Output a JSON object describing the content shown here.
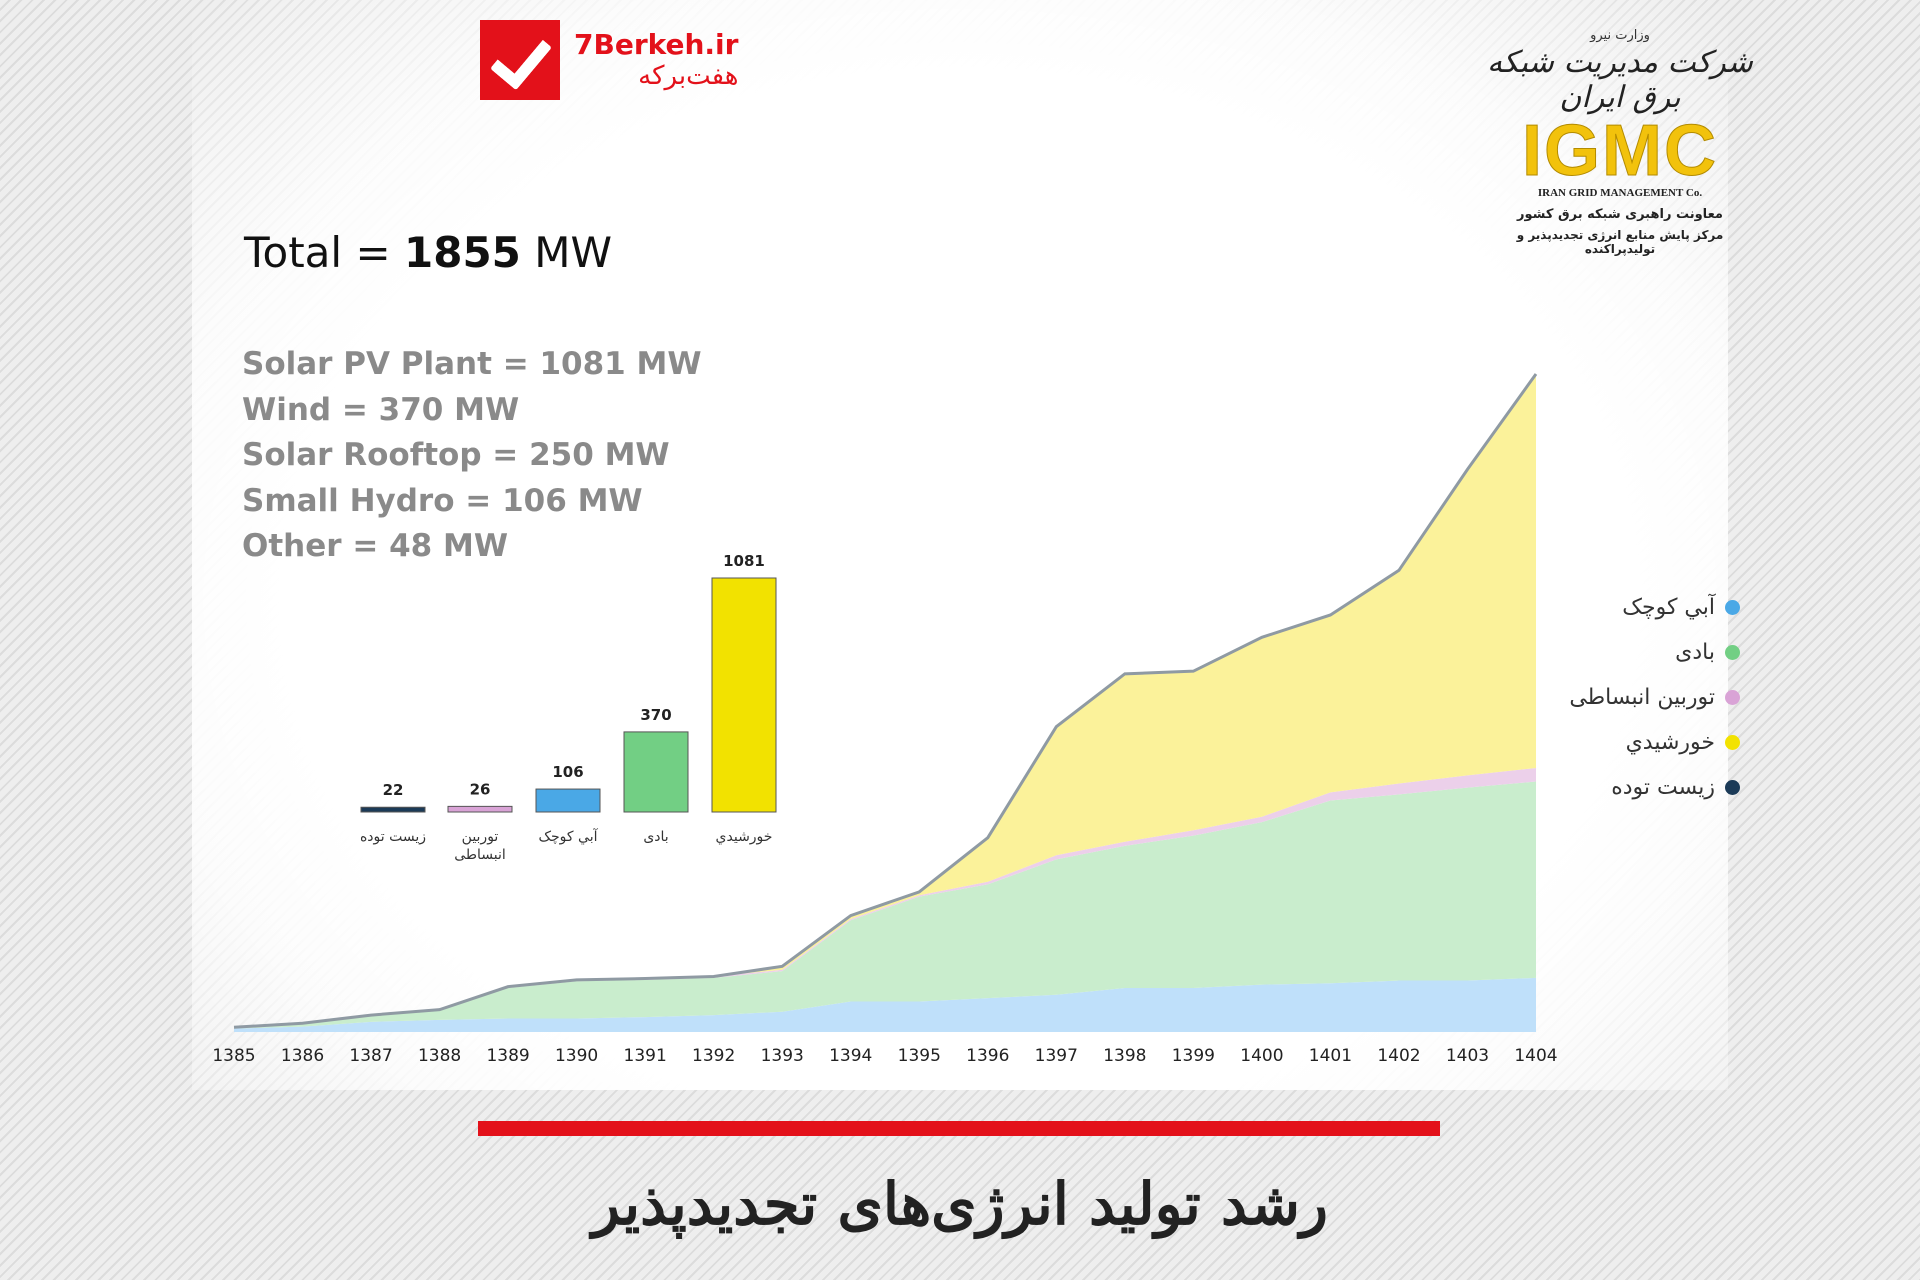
{
  "brand": {
    "name_en": "7Berkeh.ir",
    "name_fa": "هفت‌برکه"
  },
  "logo": {
    "ministry": "وزارت نیرو",
    "company_fa": "شرکت مدیریت شبکه برق ایران",
    "acronym": "IGMC",
    "company_en": "IRAN GRID MANAGEMENT Co.",
    "line1": "معاونت راهبری شبکه برق کشور",
    "line2": "مرکز پایش منابع انرژی تجدیدپذیر و تولیدپراکنده"
  },
  "total": {
    "label": "Total =",
    "value": "1855",
    "unit": "MW"
  },
  "stats": [
    "Solar PV Plant = 1081 MW",
    "Wind = 370 MW",
    "Solar Rooftop = 250 MW",
    "Small Hydro = 106 MW",
    "Other = 48 MW"
  ],
  "headline": "رشد تولید انرژی‌های تجدیدپذیر",
  "colors": {
    "hydro": "#4aa8e6",
    "wind": "#72cf84",
    "expansion": "#d9a3d6",
    "solar": "#f2e200",
    "biomass": "#1b3a57",
    "red": "#e3111a"
  },
  "legend": [
    {
      "label": "آبي کوچک",
      "color": "#4aa8e6"
    },
    {
      "label": "بادی",
      "color": "#72cf84"
    },
    {
      "label": "توربین انبساطی",
      "color": "#d9a3d6"
    },
    {
      "label": "خورشيدي",
      "color": "#f2e200"
    },
    {
      "label": "زیست توده",
      "color": "#1b3a57"
    }
  ],
  "chart_data": [
    {
      "type": "bar",
      "categories": [
        "زیست توده",
        "توربین انبساطی",
        "آبي کوچک",
        "بادی",
        "خورشيدي"
      ],
      "category_lines": [
        [
          "زیست توده"
        ],
        [
          "توربین",
          "انبساطی"
        ],
        [
          "آبي کوچک"
        ],
        [
          "بادی"
        ],
        [
          "خورشيدي"
        ]
      ],
      "values": [
        22,
        26,
        106,
        370,
        1081
      ],
      "colors": [
        "#1b3a57",
        "#d9a3d6",
        "#4aa8e6",
        "#72cf84",
        "#f2e200"
      ],
      "data_labels": true,
      "ylim": [
        0,
        1081
      ]
    },
    {
      "type": "area",
      "stacked": true,
      "x": [
        "1385",
        "1386",
        "1387",
        "1388",
        "1389",
        "1390",
        "1391",
        "1392",
        "1393",
        "1394",
        "1395",
        "1396",
        "1397",
        "1398",
        "1399",
        "1400",
        "1401",
        "1402",
        "1403",
        "1404"
      ],
      "series": [
        {
          "name": "آبي کوچک",
          "color": "#4aa8e6",
          "values": [
            5,
            8,
            15,
            18,
            20,
            20,
            22,
            25,
            30,
            45,
            45,
            50,
            55,
            65,
            65,
            70,
            72,
            76,
            76,
            80
          ]
        },
        {
          "name": "بادی",
          "color": "#72cf84",
          "values": [
            2,
            5,
            10,
            15,
            45,
            55,
            55,
            55,
            60,
            120,
            155,
            168,
            200,
            210,
            225,
            240,
            270,
            275,
            285,
            290
          ]
        },
        {
          "name": "توربین انبساطی",
          "color": "#d9a3d6",
          "values": [
            0,
            0,
            0,
            0,
            2,
            2,
            2,
            2,
            2,
            2,
            2,
            4,
            6,
            6,
            8,
            8,
            12,
            16,
            18,
            20
          ]
        },
        {
          "name": "خورشيدي",
          "color": "#f2e200",
          "values": [
            0,
            0,
            0,
            0,
            0,
            0,
            0,
            0,
            5,
            5,
            5,
            65,
            190,
            248,
            235,
            265,
            262,
            315,
            452,
            582
          ]
        },
        {
          "name": "زیست توده",
          "color": "#1b3a57",
          "values": [
            0,
            0,
            0,
            0,
            0,
            0,
            0,
            0,
            0,
            0,
            0,
            0,
            0,
            0,
            0,
            0,
            0,
            0,
            0,
            0
          ]
        }
      ],
      "ylim": [
        0,
        1000
      ],
      "grid": false,
      "legend": "right"
    }
  ]
}
